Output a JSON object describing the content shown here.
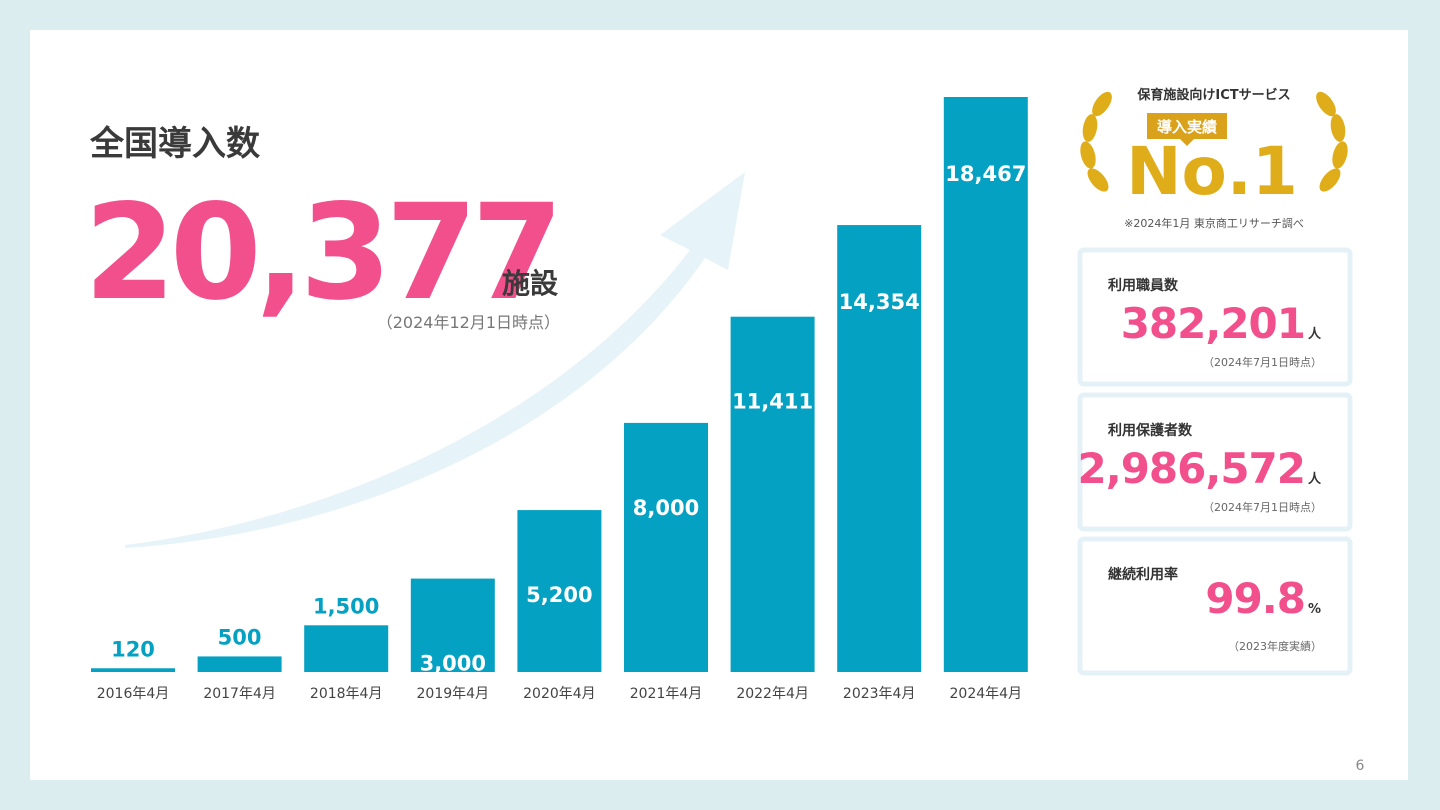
{
  "header": {
    "title": "全国導入数",
    "total": "20,377",
    "unit": "施設",
    "note": "（2024年12月1日時点）"
  },
  "badge": {
    "caption": "保育施設向けICTサービス",
    "tag": "導入実績",
    "rank": "No.1",
    "source": "※2024年1月 東京商工リサーチ調べ"
  },
  "stats": [
    {
      "label": "利用職員数",
      "value": "382,201",
      "unit": "人",
      "note": "（2024年7月1日時点）"
    },
    {
      "label": "利用保護者数",
      "value": "2,986,572",
      "unit": "人",
      "note": "（2024年7月1日時点）"
    },
    {
      "label": "継続利用率",
      "value": "99.8",
      "unit": "%",
      "note": "（2023年度実績）"
    }
  ],
  "page_number": "6",
  "chart_data": {
    "type": "bar",
    "categories": [
      "2016年4月",
      "2017年4月",
      "2018年4月",
      "2019年4月",
      "2020年4月",
      "2021年4月",
      "2022年4月",
      "2023年4月",
      "2024年4月"
    ],
    "values": [
      120,
      500,
      1500,
      3000,
      5200,
      8000,
      11411,
      14354,
      18467
    ],
    "value_labels": [
      "120",
      "500",
      "1,500",
      "3,000",
      "5,200",
      "8,000",
      "11,411",
      "14,354",
      "18,467"
    ],
    "color": "#05a1c3"
  }
}
